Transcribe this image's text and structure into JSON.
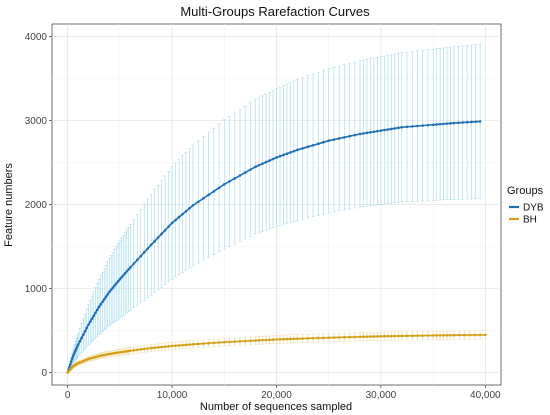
{
  "chart_data": {
    "type": "line",
    "title": "Multi-Groups Rarefaction Curves",
    "xlabel": "Number of sequences sampled",
    "ylabel": "Feature numbers",
    "xlim": [
      -1500,
      41500
    ],
    "ylim": [
      -150,
      4150
    ],
    "x_ticks": [
      0,
      10000,
      20000,
      30000,
      40000
    ],
    "x_tick_labels": [
      "0",
      "10,000",
      "20,000",
      "30,000",
      "40,000"
    ],
    "y_ticks": [
      0,
      1000,
      2000,
      3000,
      4000
    ],
    "y_tick_labels": [
      "0",
      "1000",
      "2000",
      "3000",
      "4000"
    ],
    "grid": true,
    "legend": {
      "title": "Groups",
      "position": "right"
    },
    "series": [
      {
        "name": "DYB",
        "color": "#1f6fb2",
        "errorbar_color": "#9fd8ef",
        "x": [
          0,
          500,
          1000,
          2000,
          3000,
          4000,
          5000,
          6000,
          8000,
          10000,
          12000,
          15000,
          18000,
          20000,
          22000,
          25000,
          28000,
          30000,
          32000,
          35000,
          37000,
          39500
        ],
        "y": [
          0,
          190,
          330,
          570,
          780,
          960,
          1110,
          1250,
          1520,
          1780,
          1990,
          2240,
          2450,
          2560,
          2650,
          2760,
          2840,
          2880,
          2920,
          2950,
          2970,
          2990
        ],
        "error": [
          0,
          80,
          140,
          240,
          330,
          400,
          460,
          510,
          600,
          670,
          720,
          770,
          800,
          820,
          840,
          860,
          870,
          880,
          890,
          900,
          910,
          920
        ]
      },
      {
        "name": "BH",
        "color": "#d4a017",
        "errorbar_color": "#f2d9a0",
        "x": [
          0,
          500,
          1000,
          2000,
          3000,
          4000,
          5000,
          6000,
          8000,
          10000,
          12000,
          15000,
          18000,
          20000,
          22000,
          25000,
          28000,
          30000,
          32000,
          35000,
          37000,
          40000
        ],
        "y": [
          0,
          70,
          110,
          160,
          195,
          220,
          240,
          258,
          290,
          315,
          335,
          360,
          380,
          392,
          402,
          414,
          424,
          430,
          435,
          440,
          443,
          447
        ],
        "error": [
          0,
          15,
          20,
          28,
          33,
          36,
          38,
          40,
          42,
          44,
          45,
          46,
          47,
          48,
          48,
          49,
          49,
          50,
          50,
          50,
          50,
          50
        ]
      }
    ]
  }
}
